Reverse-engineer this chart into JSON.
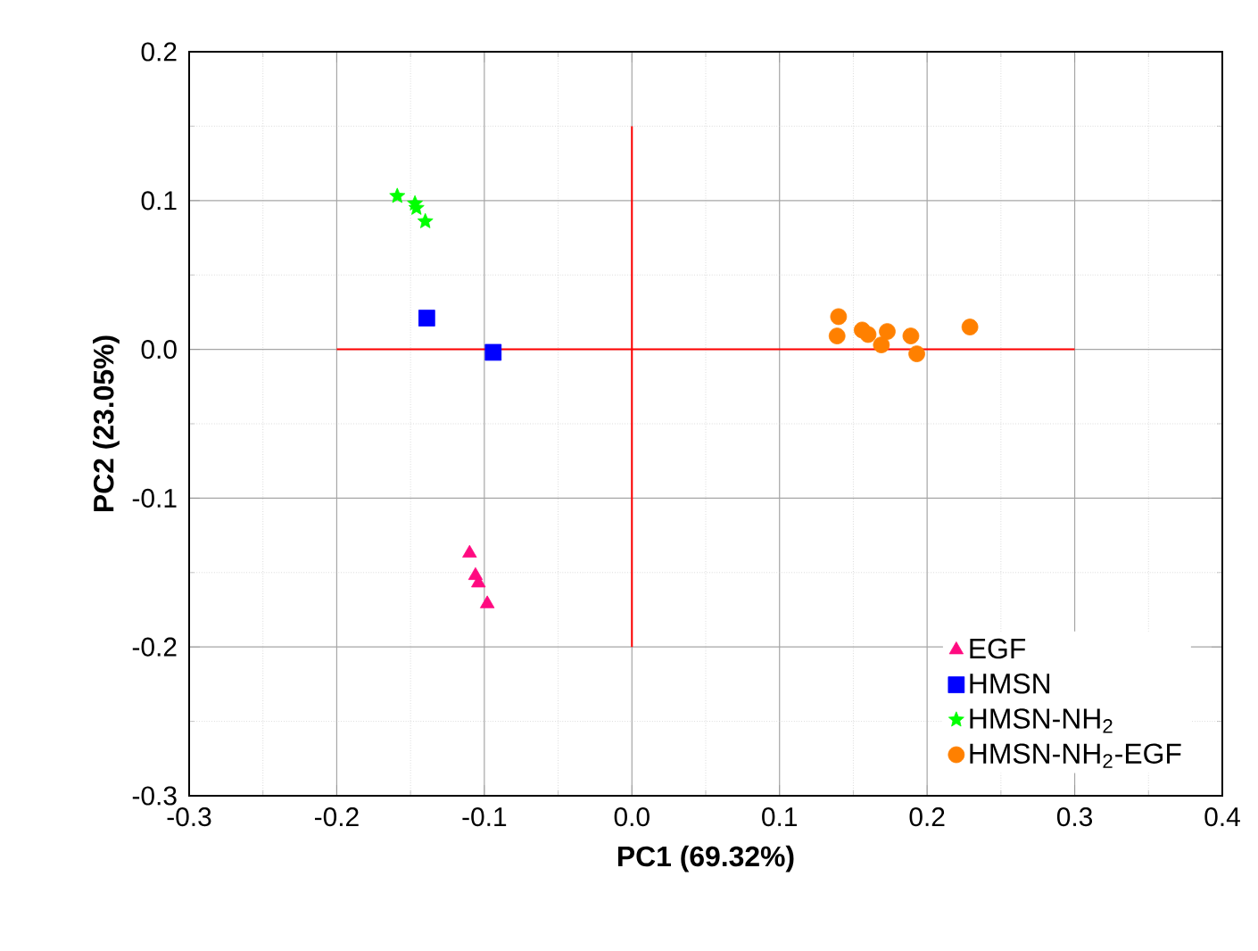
{
  "chart_data": {
    "type": "scatter",
    "xlabel": "PC1 (69.32%)",
    "ylabel": "PC2 (23.05%)",
    "xlim": [
      -0.3,
      0.4
    ],
    "ylim": [
      -0.3,
      0.2
    ],
    "xticks": [
      -0.3,
      -0.2,
      -0.1,
      {
        "value": 0,
        "label": "0.0"
      },
      0.1,
      0.2,
      0.3,
      0.4
    ],
    "yticks": [
      -0.3,
      -0.2,
      -0.1,
      {
        "value": 0,
        "label": "0.0"
      },
      0.1,
      0.2
    ],
    "grid": true,
    "legend": "bottom right",
    "series": [
      {
        "name": "EGF",
        "color": "#ff0a80",
        "marker": "triangle",
        "x": [
          -0.11,
          -0.106,
          -0.104,
          -0.098
        ],
        "values": [
          -0.137,
          -0.152,
          -0.157,
          -0.171
        ]
      },
      {
        "name": "HMSN",
        "color": "#0000ff",
        "marker": "square",
        "x": [
          -0.139,
          -0.094
        ],
        "values": [
          0.021,
          -0.002
        ]
      },
      {
        "name": "HMSN-NH$_{2}$",
        "color": "#00ff00",
        "marker": "star",
        "x": [
          -0.159,
          -0.147,
          -0.146,
          -0.14
        ],
        "values": [
          0.103,
          0.098,
          0.095,
          0.086
        ]
      },
      {
        "name": "HMSN-NH$_{2}$-EGF",
        "color": "#ff8000",
        "marker": "circle",
        "x": [
          0.14,
          0.139,
          0.156,
          0.16,
          0.173,
          0.169,
          0.189,
          0.193,
          0.229
        ],
        "values": [
          0.022,
          0.009,
          0.013,
          0.01,
          0.012,
          0.003,
          0.009,
          -0.003,
          0.015
        ]
      },
      {
        "type": "line",
        "color": "#ff0000",
        "marker": "none",
        "x": [
          -0.2,
          0.3
        ],
        "values": [
          0,
          0
        ]
      },
      {
        "type": "line",
        "color": "#ff0000",
        "marker": "none",
        "x": [
          0,
          0
        ],
        "values": [
          -0.2,
          0.15
        ]
      }
    ]
  }
}
